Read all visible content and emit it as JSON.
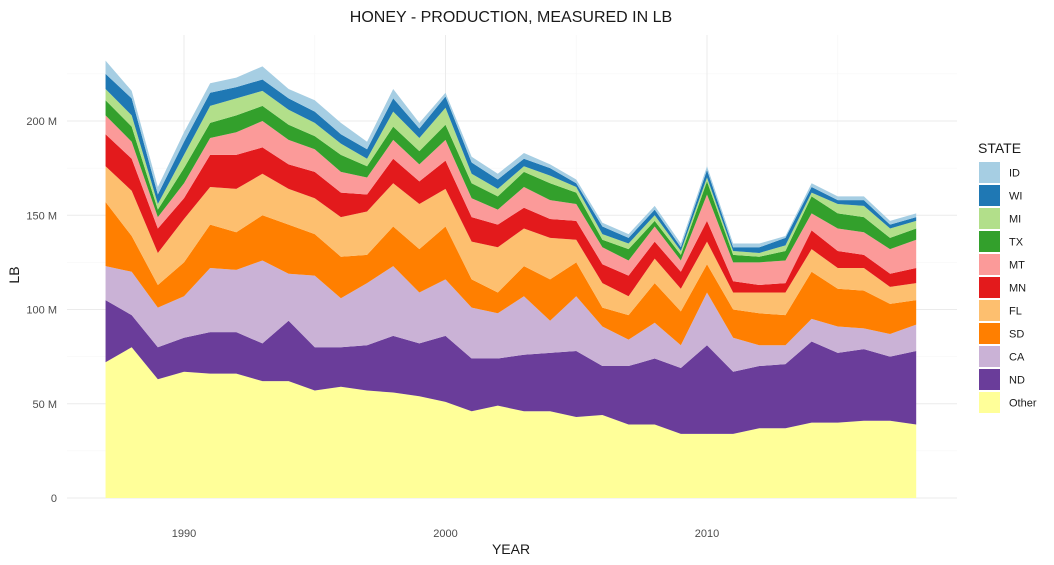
{
  "chart_data": {
    "type": "area",
    "title": "HONEY - PRODUCTION, MEASURED IN LB",
    "xlabel": "YEAR",
    "ylabel": "LB",
    "xlim": [
      1987,
      2018
    ],
    "ylim": [
      0,
      240000000
    ],
    "x_ticks": [
      1990,
      2000,
      2010
    ],
    "y_ticks": [
      0,
      50000000,
      100000000,
      150000000,
      200000000
    ],
    "y_tick_labels": [
      "0",
      "50 M",
      "100 M",
      "150 M",
      "200 M"
    ],
    "legend_title": "STATE",
    "legend_position": "right",
    "grid": true,
    "stack_order_bottom_to_top": [
      "Other",
      "ND",
      "CA",
      "SD",
      "FL",
      "MN",
      "MT",
      "TX",
      "MI",
      "WI",
      "ID"
    ],
    "legend_order": [
      "ID",
      "WI",
      "MI",
      "TX",
      "MT",
      "MN",
      "FL",
      "SD",
      "CA",
      "ND",
      "Other"
    ],
    "colors": {
      "ID": "#a6cee3",
      "WI": "#1f78b4",
      "MI": "#b2df8a",
      "TX": "#33a02c",
      "MT": "#fb9a99",
      "MN": "#e31a1c",
      "FL": "#fdbf6f",
      "SD": "#ff7f00",
      "CA": "#cab2d6",
      "ND": "#6a3d9a",
      "Other": "#ffff99"
    },
    "x": [
      1987,
      1988,
      1989,
      1990,
      1991,
      1992,
      1993,
      1994,
      1995,
      1996,
      1997,
      1998,
      1999,
      2000,
      2001,
      2002,
      2003,
      2004,
      2005,
      2006,
      2007,
      2008,
      2009,
      2010,
      2011,
      2012,
      2013,
      2014,
      2015,
      2016,
      2017,
      2018
    ],
    "series": [
      {
        "name": "Other",
        "values": [
          72,
          80,
          63,
          67,
          66,
          66,
          62,
          62,
          57,
          59,
          57,
          56,
          54,
          51,
          46,
          49,
          46,
          46,
          43,
          44,
          39,
          39,
          34,
          34,
          34,
          37,
          37,
          40,
          40,
          41,
          41,
          39
        ]
      },
      {
        "name": "ND",
        "values": [
          33,
          17,
          17,
          18,
          22,
          22,
          20,
          32,
          23,
          21,
          24,
          30,
          28,
          35,
          28,
          25,
          30,
          31,
          35,
          26,
          31,
          35,
          35,
          47,
          33,
          33,
          34,
          43,
          37,
          38,
          34,
          39
        ]
      },
      {
        "name": "CA",
        "values": [
          18,
          23,
          21,
          22,
          34,
          33,
          44,
          25,
          38,
          26,
          33,
          37,
          27,
          30,
          27,
          24,
          31,
          17,
          29,
          21,
          14,
          19,
          12,
          28,
          18,
          11,
          10,
          12,
          14,
          11,
          12,
          14
        ]
      },
      {
        "name": "SD",
        "values": [
          34,
          19,
          12,
          18,
          23,
          20,
          24,
          26,
          22,
          22,
          15,
          21,
          23,
          28,
          15,
          11,
          16,
          22,
          18,
          10,
          13,
          21,
          18,
          15,
          15,
          17,
          16,
          25,
          20,
          20,
          16,
          13
        ]
      },
      {
        "name": "FL",
        "values": [
          19,
          24,
          17,
          23,
          20,
          23,
          22,
          19,
          19,
          21,
          23,
          23,
          24,
          20,
          20,
          24,
          20,
          22,
          12,
          13,
          10,
          13,
          12,
          12,
          9,
          11,
          12,
          12,
          11,
          12,
          9,
          9
        ]
      },
      {
        "name": "MN",
        "values": [
          17,
          17,
          13,
          11,
          17,
          18,
          14,
          13,
          14,
          13,
          9,
          13,
          12,
          15,
          13,
          12,
          11,
          10,
          10,
          10,
          11,
          9,
          9,
          11,
          6,
          4,
          5,
          10,
          9,
          7,
          7,
          8
        ]
      },
      {
        "name": "MT",
        "values": [
          10,
          9,
          6,
          8,
          9,
          12,
          14,
          13,
          12,
          11,
          9,
          10,
          9,
          11,
          10,
          8,
          11,
          10,
          9,
          9,
          8,
          8,
          6,
          14,
          10,
          12,
          12,
          9,
          12,
          12,
          13,
          15
        ]
      },
      {
        "name": "TX",
        "values": [
          8,
          8,
          4,
          8,
          8,
          9,
          8,
          8,
          7,
          9,
          6,
          7,
          7,
          8,
          8,
          7,
          8,
          9,
          6,
          4,
          6,
          3,
          3,
          7,
          4,
          3,
          5,
          9,
          8,
          8,
          6,
          6
        ]
      },
      {
        "name": "MI",
        "values": [
          6,
          6,
          3,
          7,
          9,
          9,
          8,
          8,
          7,
          6,
          4,
          8,
          7,
          9,
          5,
          4,
          3,
          4,
          3,
          3,
          3,
          3,
          2,
          2,
          2,
          2,
          3,
          2,
          5,
          6,
          5,
          4
        ]
      },
      {
        "name": "WI",
        "values": [
          8,
          9,
          5,
          7,
          7,
          6,
          6,
          6,
          6,
          5,
          5,
          7,
          5,
          6,
          6,
          5,
          4,
          4,
          2,
          4,
          3,
          3,
          2,
          4,
          2,
          3,
          4,
          3,
          2,
          3,
          2,
          2
        ]
      },
      {
        "name": "ID",
        "values": [
          7,
          4,
          4,
          5,
          5,
          5,
          7,
          5,
          6,
          6,
          4,
          5,
          3,
          2,
          3,
          3,
          3,
          2,
          2,
          2,
          2,
          2,
          2,
          2,
          2,
          2,
          1,
          2,
          2,
          2,
          2,
          2
        ]
      }
    ],
    "value_unit": "M"
  }
}
